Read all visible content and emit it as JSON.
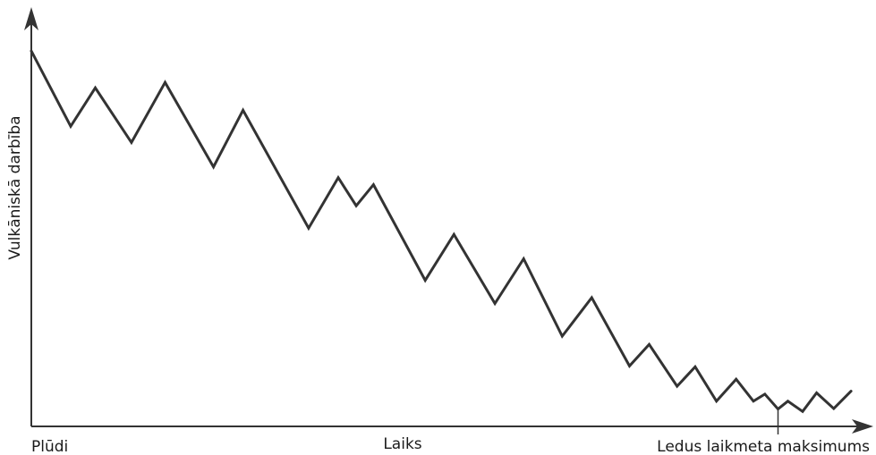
{
  "chart_data": {
    "type": "line",
    "title": "",
    "xlabel": "Laiks",
    "ylabel": "Vulkāniskā darbība",
    "x_start_label": "Plūdi",
    "x_end_label": "Ledus laikmeta maksimums",
    "x_end_tick_at": 0.91,
    "xlim": [
      0,
      1
    ],
    "ylim": [
      0,
      1
    ],
    "grid": false,
    "axis_ticks": false,
    "line_color": "#333333",
    "series": [
      {
        "x": [
          0.0,
          0.048,
          0.078,
          0.122,
          0.163,
          0.222,
          0.258,
          0.338,
          0.374,
          0.396,
          0.417,
          0.48,
          0.515,
          0.565,
          0.6,
          0.647,
          0.683,
          0.729,
          0.753,
          0.787,
          0.809,
          0.835,
          0.859,
          0.88,
          0.894,
          0.91,
          0.922,
          0.94,
          0.957,
          0.978,
          0.999
        ],
        "y": [
          0.907,
          0.725,
          0.818,
          0.686,
          0.831,
          0.627,
          0.764,
          0.479,
          0.601,
          0.533,
          0.584,
          0.353,
          0.464,
          0.297,
          0.405,
          0.218,
          0.311,
          0.146,
          0.198,
          0.097,
          0.144,
          0.061,
          0.114,
          0.061,
          0.078,
          0.042,
          0.061,
          0.036,
          0.081,
          0.043,
          0.085
        ]
      }
    ]
  }
}
